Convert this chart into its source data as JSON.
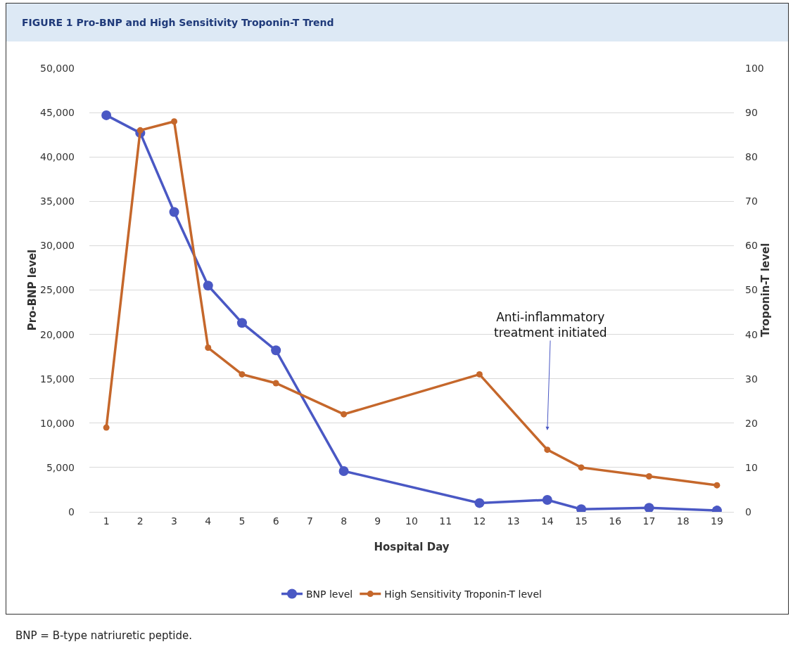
{
  "chart_data": {
    "type": "line",
    "title": "FIGURE 1 Pro-BNP and High Sensitivity Troponin-T Trend",
    "xlabel": "Hospital Day",
    "ylabel": "Pro-BNP level",
    "y2label": "Troponin-T level",
    "x": [
      1,
      2,
      3,
      4,
      5,
      6,
      8,
      12,
      14,
      15,
      17,
      19
    ],
    "series": [
      {
        "name": "BNP level",
        "color": "#4a58c4",
        "values": [
          44700,
          42700,
          33800,
          25500,
          21300,
          18200,
          4600,
          1000,
          1350,
          300,
          450,
          150
        ]
      },
      {
        "name": "High Sensitivity Troponin-T level",
        "color": "#c5672b",
        "axis": "y2",
        "values": [
          19,
          86,
          88,
          37,
          31,
          29,
          22,
          31,
          14,
          10,
          8,
          6
        ]
      }
    ],
    "xlim": [
      0.5,
      19.5
    ],
    "xticks": [
      1,
      2,
      3,
      4,
      5,
      6,
      7,
      8,
      9,
      10,
      11,
      12,
      13,
      14,
      15,
      16,
      17,
      18,
      19
    ],
    "ylim": [
      0,
      50000
    ],
    "yticks": [
      {
        "value": 0,
        "label": "0"
      },
      {
        "value": 5000,
        "label": "5,000"
      },
      {
        "value": 10000,
        "label": "10,000"
      },
      {
        "value": 15000,
        "label": "15,000"
      },
      {
        "value": 20000,
        "label": "20,000"
      },
      {
        "value": 25000,
        "label": "25,000"
      },
      {
        "value": 30000,
        "label": "30,000"
      },
      {
        "value": 35000,
        "label": "35,000"
      },
      {
        "value": 40000,
        "label": "40,000"
      },
      {
        "value": 45000,
        "label": "45,000"
      },
      {
        "value": 50000,
        "label": "50,000"
      }
    ],
    "y2lim": [
      0,
      100
    ],
    "y2ticks": [
      0,
      10,
      20,
      30,
      40,
      50,
      60,
      70,
      80,
      90,
      100
    ],
    "annotations": [
      "Anti-inflammatory\ntreatment initiated",
      "BNP = B-type natriuretic peptide."
    ],
    "grid": "y",
    "legend": "bottom",
    "marker": "circle",
    "line_style": "solid"
  }
}
